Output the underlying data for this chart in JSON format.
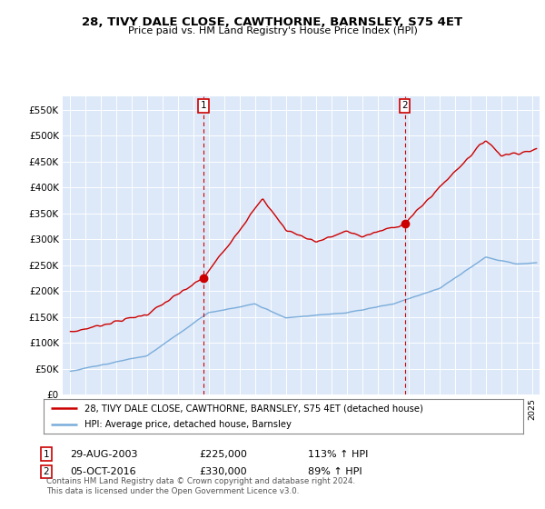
{
  "title": "28, TIVY DALE CLOSE, CAWTHORNE, BARNSLEY, S75 4ET",
  "subtitle": "Price paid vs. HM Land Registry's House Price Index (HPI)",
  "legend_line1": "28, TIVY DALE CLOSE, CAWTHORNE, BARNSLEY, S75 4ET (detached house)",
  "legend_line2": "HPI: Average price, detached house, Barnsley",
  "sale1_date": "29-AUG-2003",
  "sale1_price": "£225,000",
  "sale1_hpi": "113% ↑ HPI",
  "sale2_date": "05-OCT-2016",
  "sale2_price": "£330,000",
  "sale2_hpi": "89% ↑ HPI",
  "footer": "Contains HM Land Registry data © Crown copyright and database right 2024.\nThis data is licensed under the Open Government Licence v3.0.",
  "ylim": [
    0,
    575000
  ],
  "yticks": [
    0,
    50000,
    100000,
    150000,
    200000,
    250000,
    300000,
    350000,
    400000,
    450000,
    500000,
    550000
  ],
  "ytick_labels": [
    "£0",
    "£50K",
    "£100K",
    "£150K",
    "£200K",
    "£250K",
    "£300K",
    "£350K",
    "£400K",
    "£450K",
    "£500K",
    "£550K"
  ],
  "hpi_color": "#7aaddb",
  "house_color": "#cc0000",
  "sale1_x": 2003.65,
  "sale1_y": 225000,
  "sale2_x": 2016.75,
  "sale2_y": 330000,
  "bg_color": "#dde8f8",
  "fig_bg": "#ffffff",
  "xmin": 1994.5,
  "xmax": 2025.5
}
